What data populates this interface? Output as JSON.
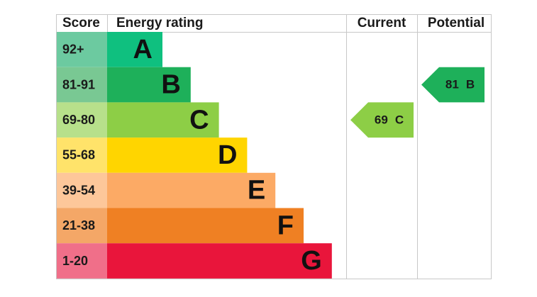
{
  "header": {
    "score": "Score",
    "energy_rating": "Energy rating",
    "current": "Current",
    "potential": "Potential"
  },
  "bands": [
    {
      "score": "92+",
      "letter": "A",
      "color": "#0fc07f",
      "light": "#6ccaa0"
    },
    {
      "score": "81-91",
      "letter": "B",
      "color": "#1eb05a",
      "light": "#79c893"
    },
    {
      "score": "69-80",
      "letter": "C",
      "color": "#8dce46",
      "light": "#b7e08b"
    },
    {
      "score": "55-68",
      "letter": "D",
      "color": "#ffd500",
      "light": "#ffe36a"
    },
    {
      "score": "39-54",
      "letter": "E",
      "color": "#fcaa65",
      "light": "#fdc79a"
    },
    {
      "score": "21-38",
      "letter": "F",
      "color": "#ef8023",
      "light": "#f4a767"
    },
    {
      "score": "1-20",
      "letter": "G",
      "color": "#e9153b",
      "light": "#f06f89"
    }
  ],
  "current": {
    "value": 69,
    "letter": "C"
  },
  "potential": {
    "value": 81,
    "letter": "B"
  }
}
